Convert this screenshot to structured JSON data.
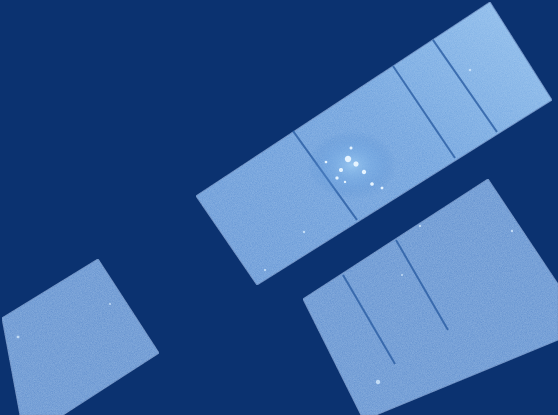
{
  "image": {
    "subject": "astronomical-detector-mosaic",
    "background_color": "#0b3270",
    "chip_base_color": "#3a78c4",
    "chip_edge_color": "#2d63ad",
    "bright_region_color": "#9ccaf2",
    "star_color": "#e6f4ff"
  }
}
